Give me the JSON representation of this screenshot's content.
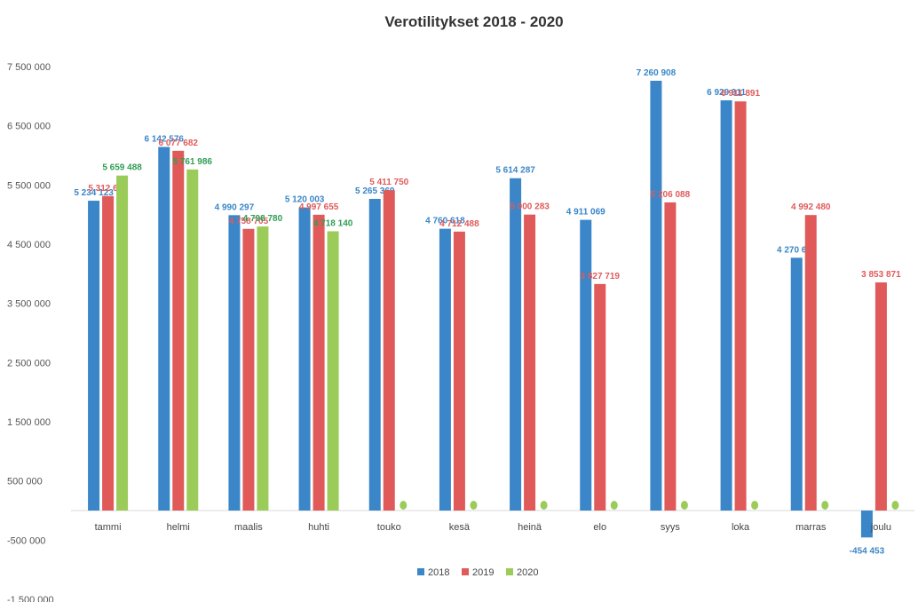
{
  "chart_data": {
    "type": "bar",
    "title": "Verotilitykset 2018 - 2020",
    "xlabel": "",
    "ylabel": "",
    "categories": [
      "tammi",
      "helmi",
      "maalis",
      "huhti",
      "touko",
      "kesä",
      "heinä",
      "elo",
      "syys",
      "loka",
      "marras",
      "joulu"
    ],
    "yticks": [
      {
        "value": 7500000,
        "label": "7 500 000"
      },
      {
        "value": 6500000,
        "label": "6 500 000"
      },
      {
        "value": 5500000,
        "label": "5 500 000"
      },
      {
        "value": 4500000,
        "label": "4 500 000"
      },
      {
        "value": 3500000,
        "label": "3 500 000"
      },
      {
        "value": 2500000,
        "label": "2 500 000"
      },
      {
        "value": 1500000,
        "label": "1 500 000"
      },
      {
        "value": 500000,
        "label": "500 000"
      },
      {
        "value": -500000,
        "label": "-500 000"
      },
      {
        "value": -1500000,
        "label": "-1 500 000"
      }
    ],
    "ylim": [
      -1500000,
      7500000
    ],
    "grid": false,
    "legend_position": "bottom",
    "series": [
      {
        "name": "2018",
        "color": "#3a86c8",
        "values": [
          5234123,
          6142576,
          4990297,
          5120003,
          5265369,
          4760618,
          5614287,
          4911069,
          7260908,
          6929911,
          4270670,
          -454453
        ],
        "labels": [
          "5 234 123",
          "6 142 576",
          "4 990 297",
          "5 120 003",
          "5 265 369",
          "4 760 618",
          "5 614 287",
          "4 911 069",
          "7 260 908",
          "6 929 911",
          "4 270 670",
          "-454 453"
        ]
      },
      {
        "name": "2019",
        "color": "#e05a5a",
        "values": [
          5312684,
          6077682,
          4758705,
          4997655,
          5411750,
          4712488,
          5000283,
          3827719,
          5206088,
          6911891,
          4992480,
          3853871
        ],
        "labels": [
          "5 312 684",
          "6 077 682",
          "4 758 705",
          "4 997 655",
          "5 411 750",
          "4 712 488",
          "5 000 283",
          "3 827 719",
          "5 206 088",
          "6 911 891",
          "4 992 480",
          "3 853 871"
        ]
      },
      {
        "name": "2020",
        "color": "#9bcc5a",
        "label_color": "#2f9e55",
        "values": [
          5659488,
          5761986,
          4798780,
          4718140,
          0,
          0,
          0,
          0,
          0,
          0,
          0,
          0
        ],
        "labels": [
          "5 659 488",
          "5 761 986",
          "4 798 780",
          "4 718 140",
          "0",
          "0",
          "0",
          "0",
          "0",
          "0",
          "0",
          "0"
        ]
      }
    ]
  }
}
